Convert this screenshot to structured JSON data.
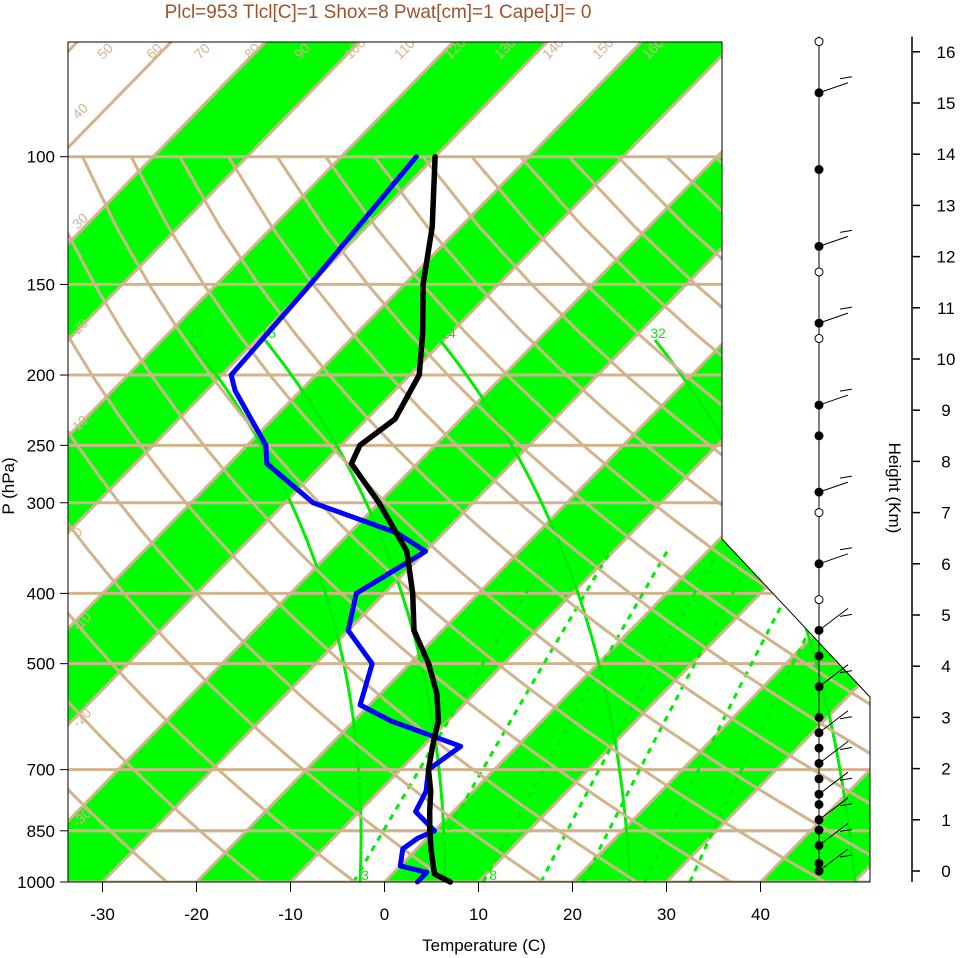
{
  "title": "Plcl=953 Tlcl[C]=1 Shox=8 Pwat[cm]=1 Cape[J]= 0",
  "colors": {
    "band": "#00ff00",
    "isotherm": "#d2b48c",
    "temperature": "#000000",
    "dewpoint": "#0000ff",
    "mixing_ratio": "#00ee00",
    "title": "#a0522d"
  },
  "chart_data": {
    "type": "skew-T",
    "xlabel": "Temperature (C)",
    "ylabel": "P (hPa)",
    "y2label": "Height (Km)",
    "x_ticks": [
      -30,
      -20,
      -10,
      0,
      10,
      20,
      30,
      40
    ],
    "pressure_ticks": [
      100,
      150,
      200,
      250,
      300,
      400,
      500,
      700,
      850,
      1000
    ],
    "height_ticks": [
      0,
      1,
      2,
      3,
      4,
      5,
      6,
      7,
      8,
      9,
      10,
      11,
      12,
      13,
      14,
      15,
      16
    ],
    "isotherm_labels": [
      "-30",
      "-20",
      "-10",
      "0",
      "10",
      "20",
      "30",
      "40",
      "50",
      "60",
      "70",
      "80",
      "90",
      "100",
      "110",
      "120",
      "130",
      "140",
      "150",
      "160"
    ],
    "mixing_ratio_labels": [
      "3",
      "8",
      "12",
      "16",
      "24",
      "32"
    ],
    "temperature_profile": [
      {
        "p": 1000,
        "t": 7
      },
      {
        "p": 975,
        "t": 4.5
      },
      {
        "p": 950,
        "t": 3.5
      },
      {
        "p": 900,
        "t": 1.5
      },
      {
        "p": 850,
        "t": -0.5
      },
      {
        "p": 800,
        "t": -2.5
      },
      {
        "p": 750,
        "t": -4.5
      },
      {
        "p": 700,
        "t": -7
      },
      {
        "p": 650,
        "t": -9
      },
      {
        "p": 600,
        "t": -11
      },
      {
        "p": 550,
        "t": -14
      },
      {
        "p": 500,
        "t": -18
      },
      {
        "p": 450,
        "t": -23
      },
      {
        "p": 400,
        "t": -27
      },
      {
        "p": 350,
        "t": -32
      },
      {
        "p": 300,
        "t": -40
      },
      {
        "p": 265,
        "t": -47
      },
      {
        "p": 250,
        "t": -48
      },
      {
        "p": 230,
        "t": -47
      },
      {
        "p": 200,
        "t": -49
      },
      {
        "p": 175,
        "t": -53
      },
      {
        "p": 150,
        "t": -58
      },
      {
        "p": 125,
        "t": -63
      },
      {
        "p": 100,
        "t": -70
      }
    ],
    "dewpoint_profile": [
      {
        "p": 1000,
        "t": 3.5
      },
      {
        "p": 970,
        "t": 3.5
      },
      {
        "p": 950,
        "t": 0
      },
      {
        "p": 900,
        "t": -1.5
      },
      {
        "p": 870,
        "t": -1
      },
      {
        "p": 850,
        "t": 0
      },
      {
        "p": 800,
        "t": -4
      },
      {
        "p": 750,
        "t": -5
      },
      {
        "p": 700,
        "t": -7
      },
      {
        "p": 650,
        "t": -6
      },
      {
        "p": 600,
        "t": -16
      },
      {
        "p": 570,
        "t": -21
      },
      {
        "p": 500,
        "t": -24
      },
      {
        "p": 450,
        "t": -30
      },
      {
        "p": 400,
        "t": -33
      },
      {
        "p": 350,
        "t": -30
      },
      {
        "p": 330,
        "t": -35
      },
      {
        "p": 300,
        "t": -47
      },
      {
        "p": 265,
        "t": -56
      },
      {
        "p": 250,
        "t": -58
      },
      {
        "p": 210,
        "t": -67
      },
      {
        "p": 200,
        "t": -69
      },
      {
        "p": 150,
        "t": -70
      },
      {
        "p": 100,
        "t": -72
      }
    ],
    "wind_markers": [
      {
        "h": 0.0,
        "filled": true
      },
      {
        "h": 0.15,
        "filled": true
      },
      {
        "h": 0.5,
        "filled": true
      },
      {
        "h": 0.8,
        "filled": true
      },
      {
        "h": 1.0,
        "filled": true
      },
      {
        "h": 1.3,
        "filled": true
      },
      {
        "h": 1.5,
        "filled": true
      },
      {
        "h": 1.8,
        "filled": true
      },
      {
        "h": 2.1,
        "filled": true
      },
      {
        "h": 2.4,
        "filled": true
      },
      {
        "h": 2.7,
        "filled": true
      },
      {
        "h": 3.0,
        "filled": true
      },
      {
        "h": 3.6,
        "filled": true
      },
      {
        "h": 4.2,
        "filled": true
      },
      {
        "h": 4.7,
        "filled": true
      },
      {
        "h": 5.3,
        "filled": false
      },
      {
        "h": 6.0,
        "filled": true
      },
      {
        "h": 7.0,
        "filled": false
      },
      {
        "h": 7.4,
        "filled": true
      },
      {
        "h": 8.5,
        "filled": true
      },
      {
        "h": 9.1,
        "filled": true
      },
      {
        "h": 10.4,
        "filled": false
      },
      {
        "h": 10.7,
        "filled": true
      },
      {
        "h": 11.7,
        "filled": false
      },
      {
        "h": 12.2,
        "filled": true
      },
      {
        "h": 13.7,
        "filled": true
      },
      {
        "h": 15.2,
        "filled": true
      },
      {
        "h": 16.2,
        "filled": false
      }
    ]
  }
}
